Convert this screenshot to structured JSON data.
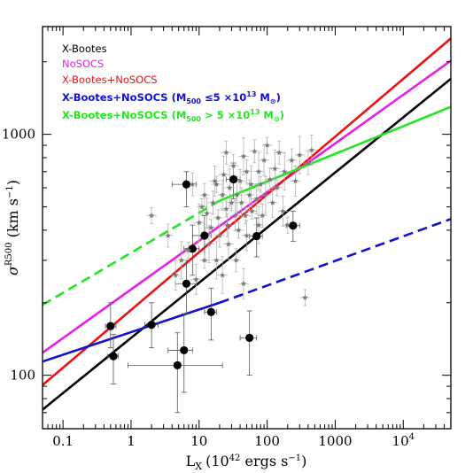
{
  "chart_data": {
    "type": "scatter",
    "xlabel": "L",
    "xlabel_sub": "X",
    "xlabel_units": "(10",
    "xlabel_units_exp": "42",
    "xlabel_units_tail": " ergs s",
    "xlabel_units_exp2": "−1",
    "xlabel_units_close": ")",
    "ylabel": "σ",
    "ylabel_sup": "R500",
    "ylabel_units": " (km s",
    "ylabel_units_exp": "−1",
    "ylabel_units_close": ")",
    "xscale": "log",
    "yscale": "log",
    "xlim": [
      0.05,
      50000
    ],
    "ylim": [
      60,
      2800
    ],
    "x_ticks": [
      {
        "value": 0.1,
        "label": "0.1"
      },
      {
        "value": 1,
        "label": "1"
      },
      {
        "value": 10,
        "label": "10"
      },
      {
        "value": 100,
        "label": "100"
      },
      {
        "value": 1000,
        "label": "1000"
      },
      {
        "value": 10000,
        "label": "10",
        "sup": "4"
      }
    ],
    "y_ticks": [
      {
        "value": 100,
        "label": "100"
      },
      {
        "value": 1000,
        "label": "1000"
      }
    ],
    "legend_placement": "top-left",
    "legend": [
      {
        "name": "X-Bootes",
        "color": "#000000",
        "bold": false
      },
      {
        "name": "NoSOCS",
        "color": "#e81ee8",
        "bold": false
      },
      {
        "name": "X-Bootes+NoSOCS",
        "color": "#ee1111",
        "bold": false
      },
      {
        "name": "X-Bootes+NoSOCS (M",
        "sub": "500",
        "tail": " ≤5 ×10",
        "sup": "13",
        "tail2": " M",
        "sub2": "⊙",
        "close": ")",
        "color": "#1010d0",
        "bold": true
      },
      {
        "name": "X-Bootes+NoSOCS (M",
        "sub": "500",
        "tail": " > 5 ×10",
        "sup": "13",
        "tail2": " M",
        "sub2": "⊙",
        "close": ")",
        "color": "#22e622",
        "bold": true
      }
    ],
    "fit_lines": [
      {
        "name": "X-Bootes",
        "color": "#000000",
        "dash": false,
        "x": [
          0.05,
          50000
        ],
        "y": [
          72,
          1700
        ]
      },
      {
        "name": "NoSOCS",
        "color": "#e81ee8",
        "dash": false,
        "x": [
          0.05,
          50000
        ],
        "y": [
          124,
          2020
        ]
      },
      {
        "name": "X-Bootes+NoSOCS",
        "color": "#ee1111",
        "dash": false,
        "x": [
          0.05,
          50000
        ],
        "y": [
          91,
          2500
        ]
      },
      {
        "name": "X-Bootes+NoSOCS (low mass)",
        "color": "#1010d0",
        "dash": false,
        "x": [
          0.05,
          20
        ],
        "y": [
          114,
          200
        ]
      },
      {
        "name": "X-Bootes+NoSOCS (low mass) extrapolated",
        "color": "#1010d0",
        "dash": true,
        "x": [
          20,
          50000
        ],
        "y": [
          200,
          445
        ]
      },
      {
        "name": "X-Bootes+NoSOCS (high mass) extrapolated",
        "color": "#22e622",
        "dash": true,
        "x": [
          0.05,
          20
        ],
        "y": [
          196,
          530
        ]
      },
      {
        "name": "X-Bootes+NoSOCS (high mass)",
        "color": "#22e622",
        "dash": false,
        "x": [
          20,
          50000
        ],
        "y": [
          530,
          1300
        ]
      }
    ],
    "series": [
      {
        "name": "X-Bootes",
        "color": "#000000",
        "points": [
          {
            "x": 0.5,
            "y": 160,
            "xerr": [
              0.42,
              0.6
            ],
            "yerr": [
              130,
              200
            ]
          },
          {
            "x": 0.55,
            "y": 120,
            "xerr": [
              0.45,
              0.65
            ],
            "yerr": [
              92,
              148
            ]
          },
          {
            "x": 2.0,
            "y": 162,
            "xerr": [
              1.6,
              2.5
            ],
            "yerr": [
              130,
              200
            ]
          },
          {
            "x": 4.8,
            "y": 110,
            "xerr": [
              0.9,
              22
            ],
            "yerr": [
              70,
              150
            ]
          },
          {
            "x": 6.0,
            "y": 127,
            "xerr": [
              3.5,
              8
            ],
            "yerr": [
              85,
              180
            ]
          },
          {
            "x": 6.5,
            "y": 240,
            "xerr": [
              4.5,
              9
            ],
            "yerr": [
              180,
              300
            ]
          },
          {
            "x": 6.5,
            "y": 620,
            "xerr": [
              4.0,
              9
            ],
            "yerr": [
              500,
              700
            ]
          },
          {
            "x": 8.0,
            "y": 335,
            "xerr": [
              6.0,
              10
            ],
            "yerr": [
              260,
              420
            ]
          },
          {
            "x": 12,
            "y": 380,
            "xerr": [
              8,
              15
            ],
            "yerr": [
              300,
              460
            ]
          },
          {
            "x": 15,
            "y": 183,
            "xerr": [
              12,
              18
            ],
            "yerr": [
              140,
              230
            ]
          },
          {
            "x": 32,
            "y": 650,
            "xerr": [
              25,
              40
            ],
            "yerr": [
              540,
              760
            ]
          },
          {
            "x": 55,
            "y": 143,
            "xerr": [
              40,
              70
            ],
            "yerr": [
              100,
              185
            ]
          },
          {
            "x": 70,
            "y": 378,
            "xerr": [
              55,
              85
            ],
            "yerr": [
              310,
              450
            ]
          },
          {
            "x": 240,
            "y": 418,
            "xerr": [
              190,
              300
            ],
            "yerr": [
              360,
              480
            ]
          }
        ]
      },
      {
        "name": "NoSOCS",
        "color": "#7a7a7a",
        "points": [
          {
            "x": 2.0,
            "y": 460
          },
          {
            "x": 3.5,
            "y": 380
          },
          {
            "x": 4.5,
            "y": 260
          },
          {
            "x": 5.5,
            "y": 300
          },
          {
            "x": 7.0,
            "y": 330
          },
          {
            "x": 8.0,
            "y": 620
          },
          {
            "x": 9.0,
            "y": 250
          },
          {
            "x": 10,
            "y": 430
          },
          {
            "x": 11,
            "y": 500
          },
          {
            "x": 12,
            "y": 560
          },
          {
            "x": 13,
            "y": 470
          },
          {
            "x": 14,
            "y": 350
          },
          {
            "x": 15,
            "y": 410
          },
          {
            "x": 16,
            "y": 520
          },
          {
            "x": 17,
            "y": 640
          },
          {
            "x": 18,
            "y": 300
          },
          {
            "x": 19,
            "y": 450
          },
          {
            "x": 20,
            "y": 380
          },
          {
            "x": 22,
            "y": 560
          },
          {
            "x": 23,
            "y": 680
          },
          {
            "x": 25,
            "y": 490
          },
          {
            "x": 26,
            "y": 420
          },
          {
            "x": 27,
            "y": 350
          },
          {
            "x": 28,
            "y": 600
          },
          {
            "x": 30,
            "y": 520
          },
          {
            "x": 32,
            "y": 740
          },
          {
            "x": 34,
            "y": 460
          },
          {
            "x": 36,
            "y": 560
          },
          {
            "x": 38,
            "y": 400
          },
          {
            "x": 40,
            "y": 640
          },
          {
            "x": 42,
            "y": 520
          },
          {
            "x": 45,
            "y": 810
          },
          {
            "x": 48,
            "y": 460
          },
          {
            "x": 50,
            "y": 700
          },
          {
            "x": 55,
            "y": 560
          },
          {
            "x": 58,
            "y": 620
          },
          {
            "x": 60,
            "y": 480
          },
          {
            "x": 65,
            "y": 850
          },
          {
            "x": 70,
            "y": 540
          },
          {
            "x": 75,
            "y": 700
          },
          {
            "x": 80,
            "y": 620
          },
          {
            "x": 85,
            "y": 460
          },
          {
            "x": 90,
            "y": 780
          },
          {
            "x": 95,
            "y": 560
          },
          {
            "x": 100,
            "y": 900
          },
          {
            "x": 110,
            "y": 650
          },
          {
            "x": 120,
            "y": 520
          },
          {
            "x": 130,
            "y": 720
          },
          {
            "x": 140,
            "y": 600
          },
          {
            "x": 150,
            "y": 840
          },
          {
            "x": 170,
            "y": 480
          },
          {
            "x": 180,
            "y": 700
          },
          {
            "x": 200,
            "y": 420
          },
          {
            "x": 230,
            "y": 780
          },
          {
            "x": 260,
            "y": 640
          },
          {
            "x": 300,
            "y": 820
          },
          {
            "x": 360,
            "y": 210
          },
          {
            "x": 400,
            "y": 760
          },
          {
            "x": 450,
            "y": 860
          },
          {
            "x": 22,
            "y": 260
          },
          {
            "x": 18,
            "y": 620
          },
          {
            "x": 35,
            "y": 300
          },
          {
            "x": 50,
            "y": 380
          },
          {
            "x": 75,
            "y": 420
          },
          {
            "x": 12,
            "y": 300
          },
          {
            "x": 25,
            "y": 840
          },
          {
            "x": 45,
            "y": 240
          }
        ]
      }
    ]
  }
}
